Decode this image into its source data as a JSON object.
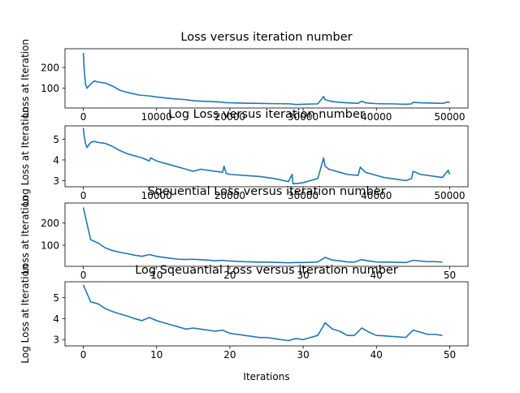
{
  "figure": {
    "xlabel": "Iterations",
    "line_color": "#1f77b4"
  },
  "chart_data": [
    {
      "type": "line",
      "title": "Loss versus iteration number",
      "ylabel": "Loss at Iteration",
      "xlim": [
        -2500,
        52500
      ],
      "ylim": [
        5,
        290
      ],
      "xticks": [
        0,
        10000,
        20000,
        30000,
        40000,
        50000
      ],
      "xtick_labels": [
        "0",
        "10000",
        "20000",
        "30000",
        "40000",
        "50000"
      ],
      "yticks": [
        100,
        200
      ],
      "ytick_labels": [
        "100",
        "200"
      ],
      "grid": false,
      "series": [
        {
          "x": [
            0,
            100,
            300,
            500,
            700,
            1000,
            1500,
            2000,
            3000,
            4000,
            5000,
            6000,
            7000,
            7500,
            8000,
            9000,
            10000,
            12000,
            14000,
            15000,
            16000,
            18000,
            19000,
            19200,
            20000,
            22000,
            24000,
            26000,
            28000,
            28500,
            29000,
            30000,
            31000,
            32000,
            32800,
            33000,
            33500,
            34000,
            35000,
            36000,
            37500,
            38000,
            38500,
            39000,
            40000,
            41000,
            42000,
            43000,
            44000,
            44800,
            45000,
            46000,
            48000,
            49000,
            49800,
            50000
          ],
          "y": [
            270,
            200,
            120,
            100,
            108,
            120,
            135,
            130,
            125,
            110,
            90,
            80,
            72,
            68,
            66,
            63,
            58,
            50,
            45,
            40,
            38,
            35,
            33,
            31,
            30,
            28,
            27,
            26,
            25,
            24,
            22,
            23,
            24,
            25,
            60,
            45,
            40,
            36,
            32,
            30,
            27,
            38,
            30,
            28,
            26,
            25,
            25,
            24,
            23,
            25,
            32,
            30,
            28,
            27,
            34,
            30
          ]
        }
      ]
    },
    {
      "type": "line",
      "title": "Log Loss versus iteration number",
      "ylabel": "Log Loss at Iteration",
      "xlim": [
        -2500,
        52500
      ],
      "ylim": [
        2.7,
        5.65
      ],
      "xticks": [
        0,
        10000,
        20000,
        30000,
        40000,
        50000
      ],
      "xtick_labels": [
        "0",
        "10000",
        "20000",
        "30000",
        "40000",
        "50000"
      ],
      "yticks": [
        3,
        4,
        5
      ],
      "ytick_labels": [
        "3",
        "4",
        "5"
      ],
      "grid": false,
      "series": [
        {
          "x": [
            0,
            100,
            300,
            500,
            700,
            1000,
            1500,
            2000,
            3000,
            4000,
            5000,
            6000,
            7000,
            7500,
            8000,
            9000,
            9200,
            10000,
            12000,
            14000,
            15000,
            16000,
            18000,
            19000,
            19200,
            19500,
            20000,
            22000,
            24000,
            26000,
            28000,
            28500,
            28600,
            29000,
            30000,
            31000,
            32000,
            32800,
            33000,
            33500,
            34000,
            35000,
            36000,
            37500,
            37800,
            38500,
            39000,
            40000,
            41000,
            42000,
            43000,
            44000,
            44800,
            45000,
            46000,
            48000,
            49000,
            49800,
            50000
          ],
          "y": [
            5.55,
            5.2,
            4.8,
            4.6,
            4.7,
            4.85,
            4.9,
            4.85,
            4.8,
            4.65,
            4.45,
            4.3,
            4.2,
            4.15,
            4.1,
            3.95,
            4.1,
            3.95,
            3.75,
            3.55,
            3.45,
            3.55,
            3.45,
            3.4,
            3.7,
            3.35,
            3.3,
            3.25,
            3.2,
            3.1,
            2.95,
            3.3,
            2.85,
            2.85,
            2.9,
            3.0,
            3.1,
            4.1,
            3.7,
            3.55,
            3.5,
            3.4,
            3.3,
            3.25,
            3.65,
            3.4,
            3.35,
            3.25,
            3.15,
            3.1,
            3.05,
            3.0,
            3.1,
            3.45,
            3.3,
            3.2,
            3.15,
            3.5,
            3.3
          ]
        }
      ]
    },
    {
      "type": "line",
      "title": "Sqeuential Loss versus iteration number",
      "ylabel": "Loss at Iteration",
      "xlim": [
        -2.5,
        52.5
      ],
      "ylim": [
        5,
        290
      ],
      "xticks": [
        0,
        10,
        20,
        30,
        40,
        50
      ],
      "xtick_labels": [
        "0",
        "10",
        "20",
        "30",
        "40",
        "50"
      ],
      "yticks": [
        100,
        200
      ],
      "ytick_labels": [
        "100",
        "200"
      ],
      "grid": false,
      "series": [
        {
          "x": [
            0,
            1,
            2,
            3,
            4,
            5,
            6,
            7,
            8,
            9,
            10,
            11,
            12,
            13,
            14,
            15,
            16,
            17,
            18,
            19,
            20,
            21,
            22,
            23,
            24,
            25,
            26,
            27,
            28,
            29,
            30,
            31,
            32,
            33,
            34,
            35,
            36,
            37,
            38,
            39,
            40,
            41,
            42,
            43,
            44,
            45,
            46,
            47,
            48,
            49
          ],
          "y": [
            270,
            125,
            110,
            88,
            76,
            68,
            62,
            55,
            50,
            58,
            50,
            45,
            41,
            37,
            36,
            37,
            35,
            33,
            30,
            32,
            29,
            27,
            26,
            25,
            24,
            24,
            23,
            22,
            21,
            22,
            22,
            23,
            25,
            45,
            33,
            30,
            25,
            24,
            35,
            29,
            25,
            24,
            24,
            23,
            22,
            32,
            29,
            26,
            26,
            24
          ]
        }
      ]
    },
    {
      "type": "line",
      "title": "Log  Sqeuantial Loss versus iteration number",
      "ylabel": "Log Loss at Iteration",
      "xlabel": "Iterations",
      "xlim": [
        -2.5,
        52.5
      ],
      "ylim": [
        2.7,
        5.75
      ],
      "xticks": [
        0,
        10,
        20,
        30,
        40,
        50
      ],
      "xtick_labels": [
        "0",
        "10",
        "20",
        "30",
        "40",
        "50"
      ],
      "yticks": [
        3,
        4,
        5
      ],
      "ytick_labels": [
        "3",
        "4",
        "5"
      ],
      "grid": false,
      "series": [
        {
          "x": [
            0,
            1,
            2,
            3,
            4,
            5,
            6,
            7,
            8,
            9,
            10,
            11,
            12,
            13,
            14,
            15,
            16,
            17,
            18,
            19,
            20,
            21,
            22,
            23,
            24,
            25,
            26,
            27,
            28,
            29,
            30,
            31,
            32,
            33,
            34,
            35,
            36,
            37,
            38,
            39,
            40,
            41,
            42,
            43,
            44,
            45,
            46,
            47,
            48,
            49
          ],
          "y": [
            5.6,
            4.8,
            4.7,
            4.47,
            4.33,
            4.22,
            4.12,
            4.0,
            3.9,
            4.05,
            3.9,
            3.8,
            3.7,
            3.6,
            3.5,
            3.55,
            3.5,
            3.45,
            3.4,
            3.45,
            3.3,
            3.25,
            3.2,
            3.15,
            3.1,
            3.1,
            3.05,
            3.0,
            2.95,
            3.05,
            3.0,
            3.1,
            3.2,
            3.8,
            3.5,
            3.4,
            3.2,
            3.2,
            3.55,
            3.35,
            3.2,
            3.18,
            3.15,
            3.13,
            3.1,
            3.45,
            3.35,
            3.25,
            3.25,
            3.2
          ]
        }
      ]
    }
  ]
}
